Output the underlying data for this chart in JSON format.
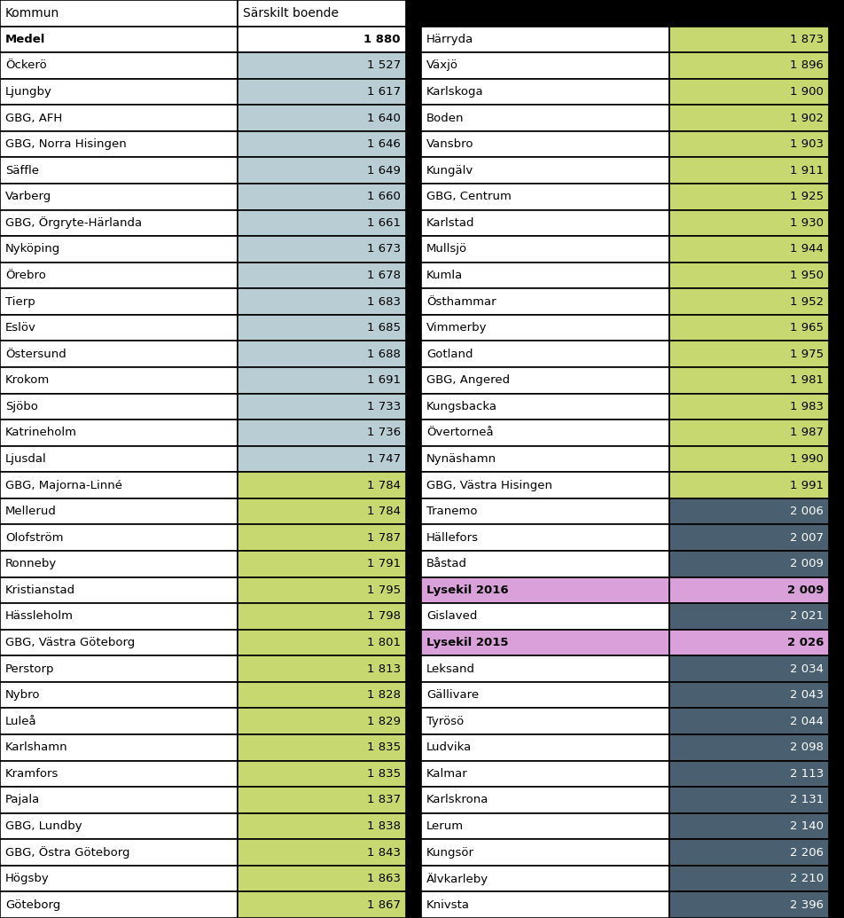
{
  "left_data": [
    [
      "Medel",
      "1 880",
      "bold",
      "#ffffff",
      "#ffffff"
    ],
    [
      "Öckerö",
      "1 527",
      "normal",
      "#ffffff",
      "#b8cdd4"
    ],
    [
      "Ljungby",
      "1 617",
      "normal",
      "#ffffff",
      "#b8cdd4"
    ],
    [
      "GBG, AFH",
      "1 640",
      "normal",
      "#ffffff",
      "#b8cdd4"
    ],
    [
      "GBG, Norra Hisingen",
      "1 646",
      "normal",
      "#ffffff",
      "#b8cdd4"
    ],
    [
      "Säffle",
      "1 649",
      "normal",
      "#ffffff",
      "#b8cdd4"
    ],
    [
      "Varberg",
      "1 660",
      "normal",
      "#ffffff",
      "#b8cdd4"
    ],
    [
      "GBG, Örgryte-Härlanda",
      "1 661",
      "normal",
      "#ffffff",
      "#b8cdd4"
    ],
    [
      "Nyköping",
      "1 673",
      "normal",
      "#ffffff",
      "#b8cdd4"
    ],
    [
      "Örebro",
      "1 678",
      "normal",
      "#ffffff",
      "#b8cdd4"
    ],
    [
      "Tierp",
      "1 683",
      "normal",
      "#ffffff",
      "#b8cdd4"
    ],
    [
      "Eslöv",
      "1 685",
      "normal",
      "#ffffff",
      "#b8cdd4"
    ],
    [
      "Östersund",
      "1 688",
      "normal",
      "#ffffff",
      "#b8cdd4"
    ],
    [
      "Krokom",
      "1 691",
      "normal",
      "#ffffff",
      "#b8cdd4"
    ],
    [
      "Sjöbo",
      "1 733",
      "normal",
      "#ffffff",
      "#b8cdd4"
    ],
    [
      "Katrineholm",
      "1 736",
      "normal",
      "#ffffff",
      "#b8cdd4"
    ],
    [
      "Ljusdal",
      "1 747",
      "normal",
      "#ffffff",
      "#b8cdd4"
    ],
    [
      "GBG, Majorna-Linné",
      "1 784",
      "normal",
      "#ffffff",
      "#c8d870"
    ],
    [
      "Mellerud",
      "1 784",
      "normal",
      "#ffffff",
      "#c8d870"
    ],
    [
      "Olofström",
      "1 787",
      "normal",
      "#ffffff",
      "#c8d870"
    ],
    [
      "Ronneby",
      "1 791",
      "normal",
      "#ffffff",
      "#c8d870"
    ],
    [
      "Kristianstad",
      "1 795",
      "normal",
      "#ffffff",
      "#c8d870"
    ],
    [
      "Hässleholm",
      "1 798",
      "normal",
      "#ffffff",
      "#c8d870"
    ],
    [
      "GBG, Västra Göteborg",
      "1 801",
      "normal",
      "#ffffff",
      "#c8d870"
    ],
    [
      "Perstorp",
      "1 813",
      "normal",
      "#ffffff",
      "#c8d870"
    ],
    [
      "Nybro",
      "1 828",
      "normal",
      "#ffffff",
      "#c8d870"
    ],
    [
      "Luleå",
      "1 829",
      "normal",
      "#ffffff",
      "#c8d870"
    ],
    [
      "Karlshamn",
      "1 835",
      "normal",
      "#ffffff",
      "#c8d870"
    ],
    [
      "Kramfors",
      "1 835",
      "normal",
      "#ffffff",
      "#c8d870"
    ],
    [
      "Pajala",
      "1 837",
      "normal",
      "#ffffff",
      "#c8d870"
    ],
    [
      "GBG, Lundby",
      "1 838",
      "normal",
      "#ffffff",
      "#c8d870"
    ],
    [
      "GBG, Östra Göteborg",
      "1 843",
      "normal",
      "#ffffff",
      "#c8d870"
    ],
    [
      "Högsby",
      "1 863",
      "normal",
      "#ffffff",
      "#c8d870"
    ],
    [
      "Göteborg",
      "1 867",
      "normal",
      "#ffffff",
      "#c8d870"
    ]
  ],
  "right_data": [
    [
      "Härryda",
      "1 873",
      "normal",
      "#ffffff",
      "#c8d870"
    ],
    [
      "Växjö",
      "1 896",
      "normal",
      "#ffffff",
      "#c8d870"
    ],
    [
      "Karlskoga",
      "1 900",
      "normal",
      "#ffffff",
      "#c8d870"
    ],
    [
      "Boden",
      "1 902",
      "normal",
      "#ffffff",
      "#c8d870"
    ],
    [
      "Vansbro",
      "1 903",
      "normal",
      "#ffffff",
      "#c8d870"
    ],
    [
      "Kungälv",
      "1 911",
      "normal",
      "#ffffff",
      "#c8d870"
    ],
    [
      "GBG, Centrum",
      "1 925",
      "normal",
      "#ffffff",
      "#c8d870"
    ],
    [
      "Karlstad",
      "1 930",
      "normal",
      "#ffffff",
      "#c8d870"
    ],
    [
      "Mullsjö",
      "1 944",
      "normal",
      "#ffffff",
      "#c8d870"
    ],
    [
      "Kumla",
      "1 950",
      "normal",
      "#ffffff",
      "#c8d870"
    ],
    [
      "Östhammar",
      "1 952",
      "normal",
      "#ffffff",
      "#c8d870"
    ],
    [
      "Vimmerby",
      "1 965",
      "normal",
      "#ffffff",
      "#c8d870"
    ],
    [
      "Gotland",
      "1 975",
      "normal",
      "#ffffff",
      "#c8d870"
    ],
    [
      "GBG, Angered",
      "1 981",
      "normal",
      "#ffffff",
      "#c8d870"
    ],
    [
      "Kungsbacka",
      "1 983",
      "normal",
      "#ffffff",
      "#c8d870"
    ],
    [
      "Övertorneå",
      "1 987",
      "normal",
      "#ffffff",
      "#c8d870"
    ],
    [
      "Nynäshamn",
      "1 990",
      "normal",
      "#ffffff",
      "#c8d870"
    ],
    [
      "GBG, Västra Hisingen",
      "1 991",
      "normal",
      "#ffffff",
      "#c8d870"
    ],
    [
      "Tranemo",
      "2 006",
      "normal",
      "#ffffff",
      "#4a6070"
    ],
    [
      "Hällefors",
      "2 007",
      "normal",
      "#ffffff",
      "#4a6070"
    ],
    [
      "Båstad",
      "2 009",
      "normal",
      "#ffffff",
      "#4a6070"
    ],
    [
      "Lysekil 2016",
      "2 009",
      "bold",
      "#d9a0d9",
      "#d9a0d9"
    ],
    [
      "Gislaved",
      "2 021",
      "normal",
      "#ffffff",
      "#4a6070"
    ],
    [
      "Lysekil 2015",
      "2 026",
      "bold",
      "#d9a0d9",
      "#d9a0d9"
    ],
    [
      "Leksand",
      "2 034",
      "normal",
      "#ffffff",
      "#4a6070"
    ],
    [
      "Gällivare",
      "2 043",
      "normal",
      "#ffffff",
      "#4a6070"
    ],
    [
      "Tyrösö",
      "2 044",
      "normal",
      "#ffffff",
      "#4a6070"
    ],
    [
      "Ludvika",
      "2 098",
      "normal",
      "#ffffff",
      "#4a6070"
    ],
    [
      "Kalmar",
      "2 113",
      "normal",
      "#ffffff",
      "#4a6070"
    ],
    [
      "Karlskrona",
      "2 131",
      "normal",
      "#ffffff",
      "#4a6070"
    ],
    [
      "Lerum",
      "2 140",
      "normal",
      "#ffffff",
      "#4a6070"
    ],
    [
      "Kungsör",
      "2 206",
      "normal",
      "#ffffff",
      "#4a6070"
    ],
    [
      "Älvkarleby",
      "2 210",
      "normal",
      "#ffffff",
      "#4a6070"
    ],
    [
      "Knivsta",
      "2 396",
      "normal",
      "#ffffff",
      "#4a6070"
    ]
  ],
  "header_left": [
    "Kommun",
    "Särskilt boende"
  ],
  "font_size": 9.5,
  "header_font_size": 10.0
}
